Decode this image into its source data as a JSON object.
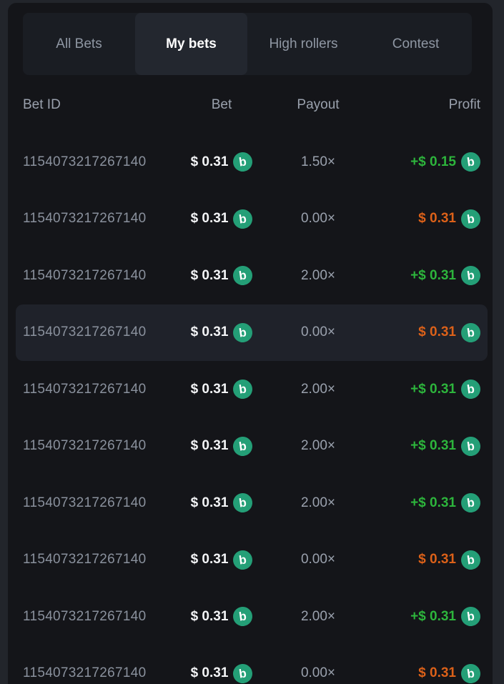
{
  "tabs": {
    "items": [
      {
        "label": "All Bets",
        "active": false
      },
      {
        "label": "My bets",
        "active": true
      },
      {
        "label": "High rollers",
        "active": false
      },
      {
        "label": "Contest",
        "active": false
      }
    ]
  },
  "table": {
    "columns": {
      "bet_id": "Bet ID",
      "bet": "Bet",
      "payout": "Payout",
      "profit": "Profit"
    },
    "rows": [
      {
        "bet_id": "1154073217267140",
        "bet": "$ 0.31",
        "payout": "1.50×",
        "profit": "+$ 0.15",
        "outcome": "win",
        "highlighted": false
      },
      {
        "bet_id": "1154073217267140",
        "bet": "$ 0.31",
        "payout": "0.00×",
        "profit": "$ 0.31",
        "outcome": "loss",
        "highlighted": false
      },
      {
        "bet_id": "1154073217267140",
        "bet": "$ 0.31",
        "payout": "2.00×",
        "profit": "+$ 0.31",
        "outcome": "win",
        "highlighted": false
      },
      {
        "bet_id": "1154073217267140",
        "bet": "$ 0.31",
        "payout": "0.00×",
        "profit": "$ 0.31",
        "outcome": "loss",
        "highlighted": true
      },
      {
        "bet_id": "1154073217267140",
        "bet": "$ 0.31",
        "payout": "2.00×",
        "profit": "+$ 0.31",
        "outcome": "win",
        "highlighted": false
      },
      {
        "bet_id": "1154073217267140",
        "bet": "$ 0.31",
        "payout": "2.00×",
        "profit": "+$ 0.31",
        "outcome": "win",
        "highlighted": false
      },
      {
        "bet_id": "1154073217267140",
        "bet": "$ 0.31",
        "payout": "2.00×",
        "profit": "+$ 0.31",
        "outcome": "win",
        "highlighted": false
      },
      {
        "bet_id": "1154073217267140",
        "bet": "$ 0.31",
        "payout": "0.00×",
        "profit": "$ 0.31",
        "outcome": "loss",
        "highlighted": false
      },
      {
        "bet_id": "1154073217267140",
        "bet": "$ 0.31",
        "payout": "2.00×",
        "profit": "+$ 0.31",
        "outcome": "win",
        "highlighted": false
      },
      {
        "bet_id": "1154073217267140",
        "bet": "$ 0.31",
        "payout": "0.00×",
        "profit": "$ 0.31",
        "outcome": "loss",
        "highlighted": false
      }
    ]
  },
  "icons": {
    "currency_coin": "bfg-coin",
    "currency_glyph": "b"
  },
  "colors": {
    "win": "#2db53c",
    "loss": "#dc6119",
    "coin": "#249f77",
    "panel_bg": "#141519",
    "highlight_bg": "#1f222a"
  }
}
